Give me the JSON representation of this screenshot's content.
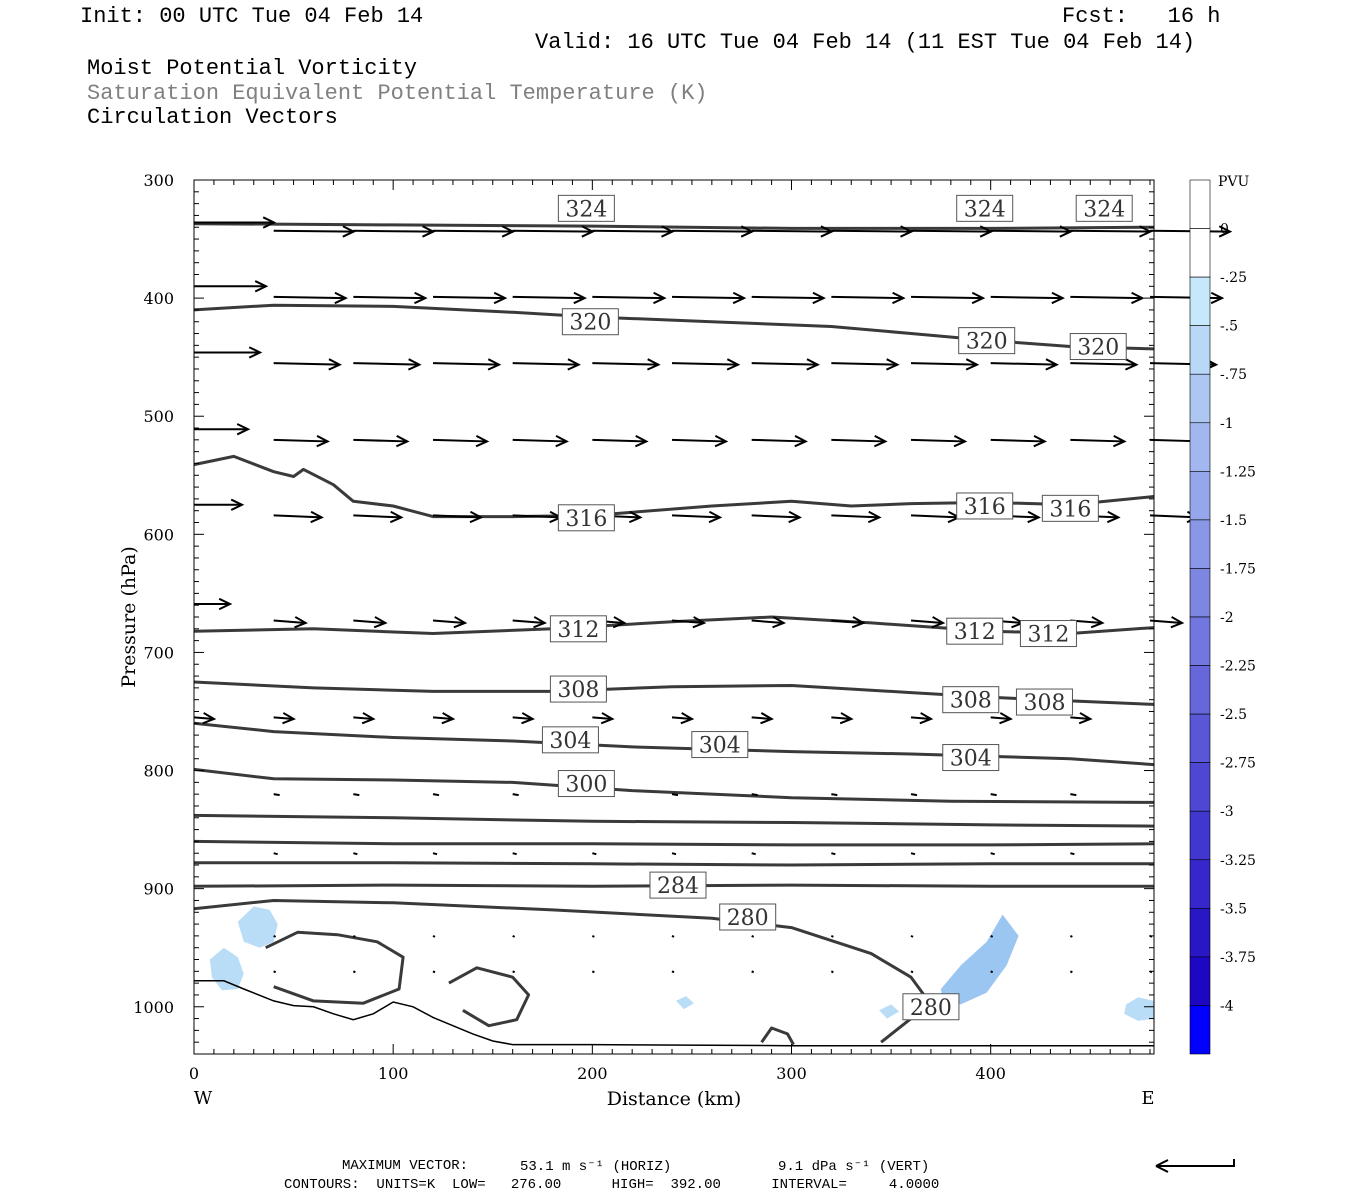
{
  "header": {
    "init": "Init: 00 UTC Tue 04 Feb 14",
    "fcst": "Fcst:   16 h",
    "valid": "Valid: 16 UTC Tue 04 Feb 14 (11 EST Tue 04 Feb 14)"
  },
  "fields": [
    {
      "label": "Moist Potential Vorticity",
      "color": "#000000"
    },
    {
      "label": "Saturation Equivalent Potential Temperature (K)",
      "color": "#808080"
    },
    {
      "label": "Circulation Vectors",
      "color": "#000000"
    }
  ],
  "footer": {
    "max_vector_label": "MAXIMUM VECTOR:",
    "horiz": "53.1 m s⁻¹ (HORIZ)",
    "vert": "9.1 dPa s⁻¹ (VERT)",
    "contours": "CONTOURS:  UNITS=K  LOW=   276.00      HIGH=  392.00      INTERVAL=     4.0000"
  },
  "chart_data": {
    "type": "contour",
    "xlabel": "Distance (km)",
    "ylabel": "Pressure (hPa)",
    "xlim": [
      0,
      482
    ],
    "ylim": [
      300,
      1030
    ],
    "x_ticks": [
      0,
      100,
      200,
      300,
      400
    ],
    "y_ticks": [
      300,
      400,
      500,
      600,
      700,
      800,
      900,
      1000
    ],
    "x_end_labels": {
      "left": "W",
      "right": "E"
    },
    "colorbar": {
      "unit": "PVU",
      "labels": [
        "0",
        "-.25",
        "-.5",
        "-.75",
        "-1",
        "-1.25",
        "-1.5",
        "-1.75",
        "-2",
        "-2.25",
        "-2.5",
        "-2.75",
        "-3",
        "-3.25",
        "-3.5",
        "-3.75",
        "-4"
      ],
      "colors": [
        "#ffffff",
        "#ffffff",
        "#c6e8fb",
        "#b9d7f6",
        "#adc7f2",
        "#a1b7ee",
        "#95a7ea",
        "#8997e6",
        "#7d87e2",
        "#7177de",
        "#6567da",
        "#5957d6",
        "#4d47d2",
        "#4137ce",
        "#3527ca",
        "#2917c6",
        "#1d07c2",
        "#0000ff"
      ]
    },
    "contour_lines": [
      {
        "level": 324,
        "points": [
          [
            0,
            337
          ],
          [
            100,
            338
          ],
          [
            200,
            339
          ],
          [
            300,
            341
          ],
          [
            400,
            341
          ],
          [
            482,
            340
          ]
        ],
        "labels": [
          [
            197,
            324
          ],
          [
            397,
            324
          ],
          [
            457,
            324
          ]
        ]
      },
      {
        "level": 320,
        "points": [
          [
            0,
            410
          ],
          [
            40,
            406
          ],
          [
            100,
            407
          ],
          [
            160,
            412
          ],
          [
            200,
            416
          ],
          [
            260,
            420
          ],
          [
            320,
            424
          ],
          [
            360,
            430
          ],
          [
            400,
            436
          ],
          [
            440,
            441
          ],
          [
            482,
            443
          ]
        ],
        "labels": [
          [
            199,
            420
          ],
          [
            398,
            436
          ],
          [
            454,
            441
          ]
        ]
      },
      {
        "level": 316,
        "points": [
          [
            0,
            541
          ],
          [
            20,
            534
          ],
          [
            40,
            547
          ],
          [
            50,
            551
          ],
          [
            55,
            545
          ],
          [
            70,
            558
          ],
          [
            80,
            572
          ],
          [
            100,
            576
          ],
          [
            120,
            585
          ],
          [
            160,
            585
          ],
          [
            200,
            584
          ],
          [
            260,
            576
          ],
          [
            300,
            572
          ],
          [
            330,
            576
          ],
          [
            360,
            574
          ],
          [
            400,
            573
          ],
          [
            440,
            575
          ],
          [
            482,
            568
          ]
        ],
        "labels": [
          [
            197,
            586
          ],
          [
            397,
            576
          ],
          [
            440,
            578
          ]
        ]
      },
      {
        "level": 312,
        "points": [
          [
            0,
            682
          ],
          [
            60,
            680
          ],
          [
            120,
            684
          ],
          [
            180,
            680
          ],
          [
            240,
            674
          ],
          [
            290,
            670
          ],
          [
            340,
            675
          ],
          [
            400,
            682
          ],
          [
            440,
            684
          ],
          [
            482,
            679
          ]
        ],
        "labels": [
          [
            193,
            680
          ],
          [
            392,
            682
          ],
          [
            429,
            684
          ]
        ]
      },
      {
        "level": 308,
        "points": [
          [
            0,
            725
          ],
          [
            60,
            730
          ],
          [
            120,
            733
          ],
          [
            180,
            733
          ],
          [
            240,
            729
          ],
          [
            300,
            728
          ],
          [
            360,
            734
          ],
          [
            400,
            738
          ],
          [
            440,
            741
          ],
          [
            482,
            744
          ]
        ],
        "labels": [
          [
            193,
            731
          ],
          [
            390,
            740
          ],
          [
            427,
            742
          ]
        ]
      },
      {
        "level": 304,
        "points": [
          [
            0,
            760
          ],
          [
            40,
            767
          ],
          [
            100,
            772
          ],
          [
            160,
            775
          ],
          [
            220,
            780
          ],
          [
            300,
            784
          ],
          [
            360,
            786
          ],
          [
            400,
            788
          ],
          [
            440,
            790
          ],
          [
            482,
            795
          ]
        ],
        "labels": [
          [
            189,
            774
          ],
          [
            264,
            778
          ],
          [
            390,
            789
          ]
        ]
      },
      {
        "level": 300,
        "points": [
          [
            0,
            799
          ],
          [
            40,
            807
          ],
          [
            100,
            808
          ],
          [
            160,
            810
          ],
          [
            220,
            817
          ],
          [
            300,
            823
          ],
          [
            380,
            826
          ],
          [
            482,
            827
          ]
        ],
        "labels": [
          [
            197,
            811
          ]
        ]
      },
      {
        "level": 296,
        "points": [
          [
            0,
            838
          ],
          [
            100,
            840
          ],
          [
            200,
            843
          ],
          [
            300,
            844
          ],
          [
            400,
            846
          ],
          [
            482,
            847
          ]
        ],
        "labels": []
      },
      {
        "level": 292,
        "points": [
          [
            0,
            860
          ],
          [
            100,
            862
          ],
          [
            200,
            862
          ],
          [
            300,
            863
          ],
          [
            400,
            863
          ],
          [
            482,
            862
          ]
        ],
        "labels": []
      },
      {
        "level": 288,
        "points": [
          [
            0,
            878
          ],
          [
            100,
            878
          ],
          [
            200,
            879
          ],
          [
            300,
            880
          ],
          [
            400,
            879
          ],
          [
            482,
            879
          ]
        ],
        "labels": []
      },
      {
        "level": 284,
        "points": [
          [
            0,
            898
          ],
          [
            100,
            897
          ],
          [
            200,
            898
          ],
          [
            300,
            897
          ],
          [
            400,
            898
          ],
          [
            482,
            898
          ]
        ],
        "labels": [
          [
            243,
            897
          ]
        ]
      },
      {
        "level": 280,
        "points": [
          [
            0,
            917
          ],
          [
            40,
            910
          ],
          [
            100,
            912
          ],
          [
            180,
            918
          ],
          [
            260,
            925
          ],
          [
            300,
            933
          ],
          [
            340,
            955
          ],
          [
            360,
            975
          ],
          [
            370,
            998
          ],
          [
            360,
            1010
          ],
          [
            345,
            1030
          ]
        ],
        "labels": [
          [
            278,
            924
          ],
          [
            370,
            1000
          ]
        ]
      },
      {
        "level": 276,
        "points": [
          [
            36,
            950
          ],
          [
            52,
            937
          ],
          [
            72,
            939
          ],
          [
            92,
            945
          ],
          [
            105,
            958
          ],
          [
            103,
            985
          ],
          [
            85,
            997
          ],
          [
            60,
            995
          ],
          [
            40,
            983
          ]
        ],
        "labels": []
      },
      {
        "level": 276,
        "points": [
          [
            128,
            980
          ],
          [
            142,
            967
          ],
          [
            160,
            975
          ],
          [
            168,
            990
          ],
          [
            162,
            1011
          ],
          [
            148,
            1016
          ],
          [
            135,
            1003
          ]
        ],
        "labels": []
      },
      {
        "level": 276,
        "points": [
          [
            285,
            1030
          ],
          [
            290,
            1018
          ],
          [
            298,
            1023
          ],
          [
            301,
            1032
          ]
        ],
        "labels": []
      }
    ],
    "surface": [
      [
        0,
        978
      ],
      [
        15,
        978
      ],
      [
        25,
        985
      ],
      [
        40,
        995
      ],
      [
        50,
        999
      ],
      [
        60,
        1000
      ],
      [
        70,
        1006
      ],
      [
        80,
        1011
      ],
      [
        90,
        1006
      ],
      [
        100,
        996
      ],
      [
        110,
        1000
      ],
      [
        120,
        1009
      ],
      [
        130,
        1016
      ],
      [
        140,
        1023
      ],
      [
        150,
        1029
      ],
      [
        160,
        1032
      ],
      [
        200,
        1032
      ],
      [
        300,
        1033
      ],
      [
        400,
        1033
      ],
      [
        482,
        1033
      ]
    ],
    "pv_patches": [
      {
        "value": -0.5,
        "points": [
          [
            22,
            928
          ],
          [
            30,
            915
          ],
          [
            38,
            918
          ],
          [
            42,
            930
          ],
          [
            40,
            945
          ],
          [
            33,
            950
          ],
          [
            25,
            945
          ]
        ]
      },
      {
        "value": -0.5,
        "points": [
          [
            8,
            960
          ],
          [
            15,
            950
          ],
          [
            22,
            958
          ],
          [
            25,
            972
          ],
          [
            22,
            985
          ],
          [
            14,
            986
          ],
          [
            9,
            975
          ]
        ]
      },
      {
        "value": -0.75,
        "points": [
          [
            375,
            985
          ],
          [
            385,
            965
          ],
          [
            398,
            945
          ],
          [
            406,
            922
          ],
          [
            414,
            940
          ],
          [
            408,
            965
          ],
          [
            398,
            988
          ],
          [
            385,
            998
          ],
          [
            376,
            996
          ]
        ]
      },
      {
        "value": -0.5,
        "points": [
          [
            468,
            998
          ],
          [
            474,
            992
          ],
          [
            482,
            995
          ],
          [
            482,
            1010
          ],
          [
            474,
            1012
          ],
          [
            467,
            1006
          ]
        ]
      },
      {
        "value": -0.5,
        "points": [
          [
            242,
            995
          ],
          [
            247,
            991
          ],
          [
            251,
            997
          ],
          [
            246,
            1002
          ]
        ]
      },
      {
        "value": -0.5,
        "points": [
          [
            344,
            1003
          ],
          [
            350,
            998
          ],
          [
            354,
            1004
          ],
          [
            348,
            1010
          ]
        ]
      }
    ],
    "vector_rows": [
      {
        "p": 336,
        "u": 40,
        "xs": [
          0
        ],
        "w": 0
      },
      {
        "p": 343,
        "u": 40,
        "xs": [
          40,
          80,
          120,
          160,
          200,
          240,
          280,
          320,
          360,
          400,
          440,
          480
        ],
        "w": -0.1
      },
      {
        "p": 390,
        "u": 36,
        "xs": [
          0
        ],
        "w": 0
      },
      {
        "p": 399,
        "u": 36,
        "xs": [
          40,
          80,
          120,
          160,
          200,
          240,
          280,
          320,
          360,
          400,
          440,
          480
        ],
        "w": -0.15
      },
      {
        "p": 446,
        "u": 33,
        "xs": [
          0
        ],
        "w": 0
      },
      {
        "p": 455,
        "u": 33,
        "xs": [
          40,
          80,
          120,
          160,
          200,
          240,
          280,
          320,
          360,
          400,
          440,
          480
        ],
        "w": -0.2
      },
      {
        "p": 511,
        "u": 27,
        "xs": [
          0
        ],
        "w": 0
      },
      {
        "p": 520,
        "u": 27,
        "xs": [
          40,
          80,
          120,
          160,
          200,
          240,
          280,
          320,
          360,
          400,
          440,
          480
        ],
        "w": -0.2
      },
      {
        "p": 575,
        "u": 24,
        "xs": [
          0
        ],
        "w": 0
      },
      {
        "p": 584,
        "u": 24,
        "xs": [
          40,
          80,
          120,
          160,
          200,
          240,
          280,
          320,
          360,
          400,
          440,
          480
        ],
        "w": -0.25
      },
      {
        "p": 659,
        "u": 18,
        "xs": [
          0
        ],
        "w": 0
      },
      {
        "p": 673,
        "u": 16,
        "xs": [
          40,
          80,
          120,
          160,
          200,
          240,
          280,
          320,
          360,
          400,
          440,
          480
        ],
        "w": -0.3
      },
      {
        "p": 755,
        "u": 10,
        "xs": [
          0,
          40,
          80,
          120,
          160,
          200,
          240,
          280,
          320,
          360,
          400,
          440
        ],
        "w": -0.2
      },
      {
        "p": 820,
        "u": 3,
        "xs": [
          40,
          80,
          120,
          160,
          200,
          240,
          280,
          320,
          360,
          400,
          440
        ],
        "w": -0.3
      },
      {
        "p": 870,
        "u": 2,
        "xs": [
          40,
          80,
          120,
          160,
          200,
          240,
          280,
          320,
          360,
          400,
          440
        ],
        "w": -0.2
      },
      {
        "p": 940,
        "u": 1,
        "xs": [
          40,
          80,
          120,
          160,
          200,
          240,
          280,
          320,
          360,
          400,
          440,
          480
        ],
        "w": -0.2
      },
      {
        "p": 970,
        "u": 1,
        "xs": [
          40,
          80,
          120,
          160,
          200,
          240,
          280,
          320,
          360,
          400,
          440,
          480
        ],
        "w": -0.2
      }
    ]
  }
}
